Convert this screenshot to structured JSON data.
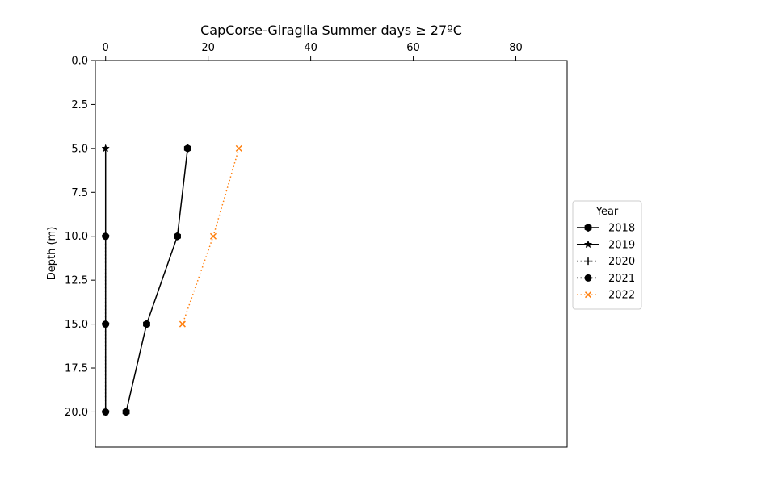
{
  "chart_data": {
    "type": "line",
    "title": "CapCorse-Giraglia Summer days ≥ 27ºC",
    "xlabel": "",
    "ylabel": "Depth (m)",
    "x_axis_position": "top",
    "y_inverted": true,
    "xlim": [
      -2,
      90
    ],
    "ylim": [
      0,
      22
    ],
    "x_ticks": [
      0,
      20,
      40,
      60,
      80
    ],
    "y_ticks": [
      0.0,
      2.5,
      5.0,
      7.5,
      10.0,
      12.5,
      15.0,
      17.5,
      20.0
    ],
    "x_tick_labels": [
      "0",
      "20",
      "40",
      "60",
      "80"
    ],
    "y_tick_labels": [
      "0.0",
      "2.5",
      "5.0",
      "7.5",
      "10.0",
      "12.5",
      "15.0",
      "17.5",
      "20.0"
    ],
    "grid": false,
    "legend": {
      "title": "Year",
      "placement": "outside-right"
    },
    "series": [
      {
        "name": "2018",
        "color": "#000000",
        "line_style": "solid",
        "marker": "hexagon",
        "points": [
          {
            "x": 16,
            "y": 5
          },
          {
            "x": 14,
            "y": 10
          },
          {
            "x": 8,
            "y": 15
          },
          {
            "x": 4,
            "y": 20
          }
        ]
      },
      {
        "name": "2019",
        "color": "#000000",
        "line_style": "solid",
        "marker": "star",
        "points": [
          {
            "x": 0,
            "y": 5
          },
          {
            "x": 0,
            "y": 10
          },
          {
            "x": 0,
            "y": 15
          },
          {
            "x": 0,
            "y": 20
          }
        ]
      },
      {
        "name": "2020",
        "color": "#000000",
        "line_style": "dotted",
        "marker": "plus",
        "points": [
          {
            "x": 0,
            "y": 10
          },
          {
            "x": 0,
            "y": 15
          },
          {
            "x": 0,
            "y": 20
          }
        ]
      },
      {
        "name": "2021",
        "color": "#000000",
        "line_style": "dotted",
        "marker": "circle",
        "points": [
          {
            "x": 0,
            "y": 10
          },
          {
            "x": 0,
            "y": 15
          },
          {
            "x": 0,
            "y": 20
          }
        ]
      },
      {
        "name": "2022",
        "color": "#ff7f0e",
        "line_style": "dotted",
        "marker": "x",
        "points": [
          {
            "x": 26,
            "y": 5
          },
          {
            "x": 21,
            "y": 10
          },
          {
            "x": 15,
            "y": 15
          }
        ]
      }
    ]
  }
}
